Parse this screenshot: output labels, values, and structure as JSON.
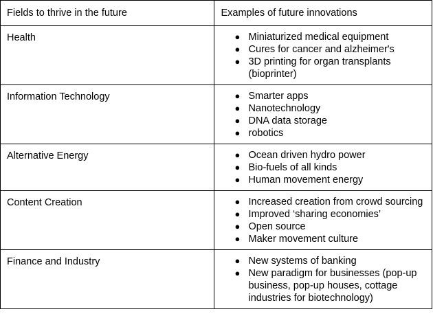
{
  "table": {
    "headers": [
      "Fields to thrive in the future",
      "Examples of future innovations"
    ],
    "rows": [
      {
        "field": "Health",
        "examples": [
          "Miniaturized medical equipment",
          "Cures for cancer and alzheimer's",
          "3D printing for organ transplants (bioprinter)"
        ]
      },
      {
        "field": "Information Technology",
        "examples": [
          "Smarter apps",
          "Nanotechnology",
          "DNA data storage",
          "robotics"
        ]
      },
      {
        "field": "Alternative Energy",
        "examples": [
          "Ocean driven hydro power",
          "Bio-fuels of all kinds",
          "Human movement energy"
        ]
      },
      {
        "field": "Content Creation",
        "examples": [
          "Increased creation from crowd sourcing",
          "Improved ‘sharing economies’",
          "Open source",
          "Maker movement culture"
        ]
      },
      {
        "field": "Finance and Industry",
        "examples": [
          "New systems of banking",
          "New paradigm for businesses (pop-up business, pop-up houses, cottage industries for biotechnology)"
        ]
      }
    ]
  }
}
